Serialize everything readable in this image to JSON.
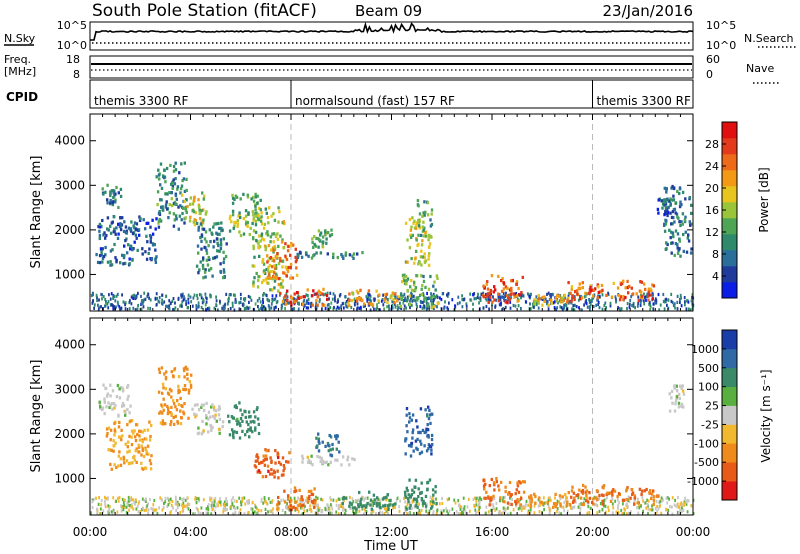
{
  "header": {
    "station": "South Pole Station (fitACF)",
    "beam": "Beam 09",
    "date": "23/Jan/2016"
  },
  "top_panels": {
    "nsky_label": "N.Sky",
    "nsearch_label": "N.Search",
    "nsky_ticks": [
      "10^5",
      "10^0"
    ],
    "freq_label_1": "Freq.",
    "freq_label_2": "[MHz]",
    "freq_ticks": [
      "18",
      "8"
    ],
    "nave_label": "Nave",
    "nave_ticks": [
      "60",
      "0"
    ],
    "cpid_label": "CPID",
    "cpid_segments": [
      {
        "name": "themis 3300 RF",
        "start_hour": 0,
        "end_hour": 8
      },
      {
        "name": "normalsound (fast) 157 RF",
        "start_hour": 8,
        "end_hour": 20
      },
      {
        "name": "themis 3300 RF",
        "start_hour": 20,
        "end_hour": 24
      }
    ]
  },
  "time_axis": {
    "label": "Time UT",
    "ticks": [
      "00:00",
      "04:00",
      "08:00",
      "12:00",
      "16:00",
      "20:00",
      "00:00"
    ]
  },
  "chart_data": [
    {
      "type": "heatmap",
      "title": "",
      "xlabel": "Time UT",
      "ylabel": "Slant Range [km]",
      "x_range_hours": [
        0,
        24
      ],
      "ylim": [
        180,
        4600
      ],
      "yticks": [
        1000,
        2000,
        3000,
        4000
      ],
      "colorbar": {
        "label": "Power [dB]",
        "ticks": [
          "4",
          "8",
          "12",
          "16",
          "20",
          "24",
          "28"
        ],
        "colors": [
          "#0a1ee6",
          "#1f3c9c",
          "#2a6e9a",
          "#2e8a6a",
          "#4ea555",
          "#9ac43a",
          "#e8c41e",
          "#f29a16",
          "#ec6a18",
          "#e43a1c",
          "#e01010"
        ]
      },
      "regions": [
        {
          "t0": 0.3,
          "t1": 1.2,
          "r0": 2500,
          "r1": 3000,
          "v": 8
        },
        {
          "t0": 0.2,
          "t1": 2.6,
          "r0": 1200,
          "r1": 2300,
          "v": 6
        },
        {
          "t0": 2.6,
          "t1": 3.8,
          "r0": 2000,
          "r1": 3500,
          "v": 10
        },
        {
          "t0": 3.6,
          "t1": 4.6,
          "r0": 2100,
          "r1": 2900,
          "v": 18
        },
        {
          "t0": 4.2,
          "t1": 5.4,
          "r0": 900,
          "r1": 2200,
          "v": 9
        },
        {
          "t0": 5.5,
          "t1": 6.8,
          "r0": 1800,
          "r1": 2800,
          "v": 14
        },
        {
          "t0": 6.4,
          "t1": 7.7,
          "r0": 600,
          "r1": 2500,
          "v": 16
        },
        {
          "t0": 7.0,
          "t1": 8.2,
          "r0": 900,
          "r1": 1700,
          "v": 24
        },
        {
          "t0": 7.5,
          "t1": 9.4,
          "r0": 300,
          "r1": 700,
          "v": 26
        },
        {
          "t0": 8.2,
          "t1": 10.8,
          "r0": 1350,
          "r1": 1500,
          "v": 9
        },
        {
          "t0": 8.8,
          "t1": 9.6,
          "r0": 1600,
          "r1": 2000,
          "v": 14
        },
        {
          "t0": 10.2,
          "t1": 12.3,
          "r0": 300,
          "r1": 650,
          "v": 22
        },
        {
          "t0": 12.5,
          "t1": 13.5,
          "r0": 1200,
          "r1": 2300,
          "v": 17
        },
        {
          "t0": 13.0,
          "t1": 13.6,
          "r0": 1800,
          "r1": 2700,
          "v": 12
        },
        {
          "t0": 12.3,
          "t1": 13.8,
          "r0": 250,
          "r1": 1000,
          "v": 13
        },
        {
          "t0": 15.6,
          "t1": 17.2,
          "r0": 350,
          "r1": 1000,
          "v": 26
        },
        {
          "t0": 17.6,
          "t1": 19.0,
          "r0": 300,
          "r1": 550,
          "v": 20
        },
        {
          "t0": 19.0,
          "t1": 22.4,
          "r0": 400,
          "r1": 850,
          "v": 25
        },
        {
          "t0": 22.8,
          "t1": 23.9,
          "r0": 1400,
          "r1": 3000,
          "v": 8
        },
        {
          "t0": 22.5,
          "t1": 23.3,
          "r0": 2300,
          "r1": 2700,
          "v": 6
        }
      ]
    },
    {
      "type": "heatmap",
      "title": "",
      "xlabel": "Time UT",
      "ylabel": "Slant Range [km]",
      "x_range_hours": [
        0,
        24
      ],
      "ylim": [
        180,
        4600
      ],
      "yticks": [
        1000,
        2000,
        3000,
        4000
      ],
      "colorbar": {
        "label": "Velocity [m s⁻¹]",
        "ticks": [
          "1000",
          "500",
          "100",
          "25",
          "-25",
          "-100",
          "-500",
          "-1000"
        ],
        "colors": [
          "#1a3ea8",
          "#2f6aa6",
          "#3a8a6a",
          "#59b040",
          "#c8c8c8",
          "#f2b830",
          "#ef8a1c",
          "#e85a18",
          "#e01818"
        ]
      },
      "regions": [
        {
          "t0": 0.3,
          "t1": 1.6,
          "r0": 2400,
          "r1": 3100,
          "v": 0
        },
        {
          "t0": 0.6,
          "t1": 2.4,
          "r0": 1200,
          "r1": 2300,
          "v": -100
        },
        {
          "t0": 2.7,
          "t1": 4.0,
          "r0": 2200,
          "r1": 3500,
          "v": -150
        },
        {
          "t0": 4.0,
          "t1": 5.3,
          "r0": 2000,
          "r1": 2700,
          "v": 0
        },
        {
          "t0": 5.4,
          "t1": 6.7,
          "r0": 1900,
          "r1": 2700,
          "v": 150
        },
        {
          "t0": 6.5,
          "t1": 7.9,
          "r0": 1000,
          "r1": 1700,
          "v": -500
        },
        {
          "t0": 7.4,
          "t1": 9.0,
          "r0": 300,
          "r1": 800,
          "v": -300
        },
        {
          "t0": 8.4,
          "t1": 10.5,
          "r0": 1300,
          "r1": 1500,
          "v": 0
        },
        {
          "t0": 8.8,
          "t1": 9.9,
          "r0": 1500,
          "r1": 2000,
          "v": 300
        },
        {
          "t0": 10.0,
          "t1": 12.2,
          "r0": 300,
          "r1": 700,
          "v": 150
        },
        {
          "t0": 12.5,
          "t1": 13.6,
          "r0": 1500,
          "r1": 2600,
          "v": 600
        },
        {
          "t0": 12.4,
          "t1": 13.8,
          "r0": 300,
          "r1": 1000,
          "v": 200
        },
        {
          "t0": 15.6,
          "t1": 17.3,
          "r0": 400,
          "r1": 1000,
          "v": -300
        },
        {
          "t0": 17.4,
          "t1": 19.0,
          "r0": 350,
          "r1": 650,
          "v": -200
        },
        {
          "t0": 19.0,
          "t1": 22.6,
          "r0": 400,
          "r1": 850,
          "v": -300
        },
        {
          "t0": 23.0,
          "t1": 23.8,
          "r0": 2500,
          "r1": 3100,
          "v": 0
        }
      ]
    }
  ]
}
